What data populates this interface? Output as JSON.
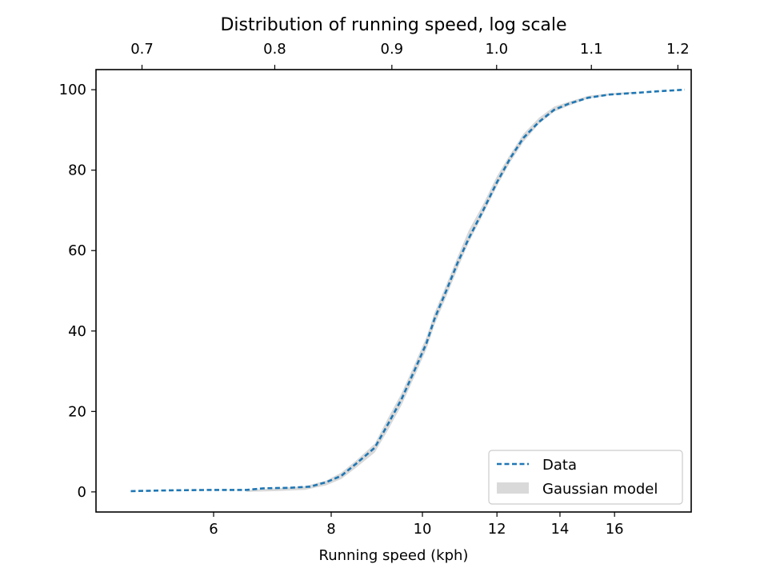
{
  "chart_data": {
    "type": "line",
    "title": "Distribution of running speed, log scale",
    "xlabel": "Running speed (kph)",
    "ylabel": "",
    "x_scale": "log",
    "xlim": [
      4.5,
      19.3
    ],
    "ylim": [
      -5,
      105
    ],
    "x_ticks": [
      6,
      8,
      10,
      12,
      14,
      16
    ],
    "x_tick_labels": [
      "6",
      "8",
      "10",
      "12",
      "14",
      "16"
    ],
    "y_ticks": [
      0,
      20,
      40,
      60,
      80,
      100
    ],
    "y_tick_labels": [
      "0",
      "20",
      "40",
      "60",
      "80",
      "100"
    ],
    "top_axis_ticks": [
      0.7,
      0.8,
      0.9,
      1.0,
      1.1,
      1.2
    ],
    "top_axis_tick_labels": [
      "0.7",
      "0.8",
      "0.9",
      "1.0",
      "1.1",
      "1.2"
    ],
    "grid": false,
    "legend_position": "lower-right",
    "series": [
      {
        "name": "Data",
        "style": "dashed",
        "color": "#1f77b4",
        "x": [
          4.9,
          5.4,
          6.0,
          6.5,
          6.8,
          7.2,
          7.6,
          7.9,
          8.2,
          8.5,
          8.9,
          9.2,
          9.5,
          9.8,
          10.1,
          10.3,
          10.6,
          10.9,
          11.2,
          11.6,
          12.0,
          12.4,
          12.8,
          13.3,
          13.8,
          14.3,
          15.0,
          15.8,
          16.8,
          17.8,
          19.0
        ],
        "y": [
          0.2,
          0.4,
          0.5,
          0.5,
          0.9,
          1.0,
          1.3,
          2.4,
          4.0,
          7.0,
          11.0,
          17.0,
          23.0,
          30.0,
          37.0,
          43.0,
          50.0,
          57.0,
          63.0,
          70.0,
          77.0,
          83.0,
          88.0,
          92.0,
          95.0,
          96.5,
          98.0,
          98.8,
          99.2,
          99.6,
          100.0
        ]
      },
      {
        "name": "Gaussian model",
        "style": "band",
        "color": "#d9d9d9",
        "x": [
          6.5,
          7.0,
          7.5,
          7.9,
          8.2,
          8.5,
          8.9,
          9.2,
          9.5,
          9.8,
          10.1,
          10.3,
          10.6,
          10.9,
          11.2,
          11.6,
          12.0,
          12.4,
          12.8,
          13.3,
          13.8,
          14.3,
          15.0,
          15.8,
          16.8
        ],
        "y_low": [
          0.0,
          0.2,
          0.5,
          1.6,
          3.2,
          6.0,
          9.8,
          15.5,
          21.5,
          28.5,
          35.5,
          41.5,
          48.5,
          55.5,
          62.0,
          69.0,
          76.0,
          82.0,
          87.0,
          91.5,
          94.5,
          96.0,
          97.8,
          98.6,
          99.1
        ],
        "y_high": [
          0.5,
          0.9,
          1.4,
          2.8,
          4.8,
          7.8,
          12.0,
          18.5,
          24.5,
          31.5,
          38.5,
          44.5,
          51.5,
          58.5,
          65.0,
          71.5,
          78.5,
          84.0,
          89.0,
          93.0,
          95.8,
          97.0,
          98.5,
          99.1,
          99.5
        ]
      }
    ]
  }
}
